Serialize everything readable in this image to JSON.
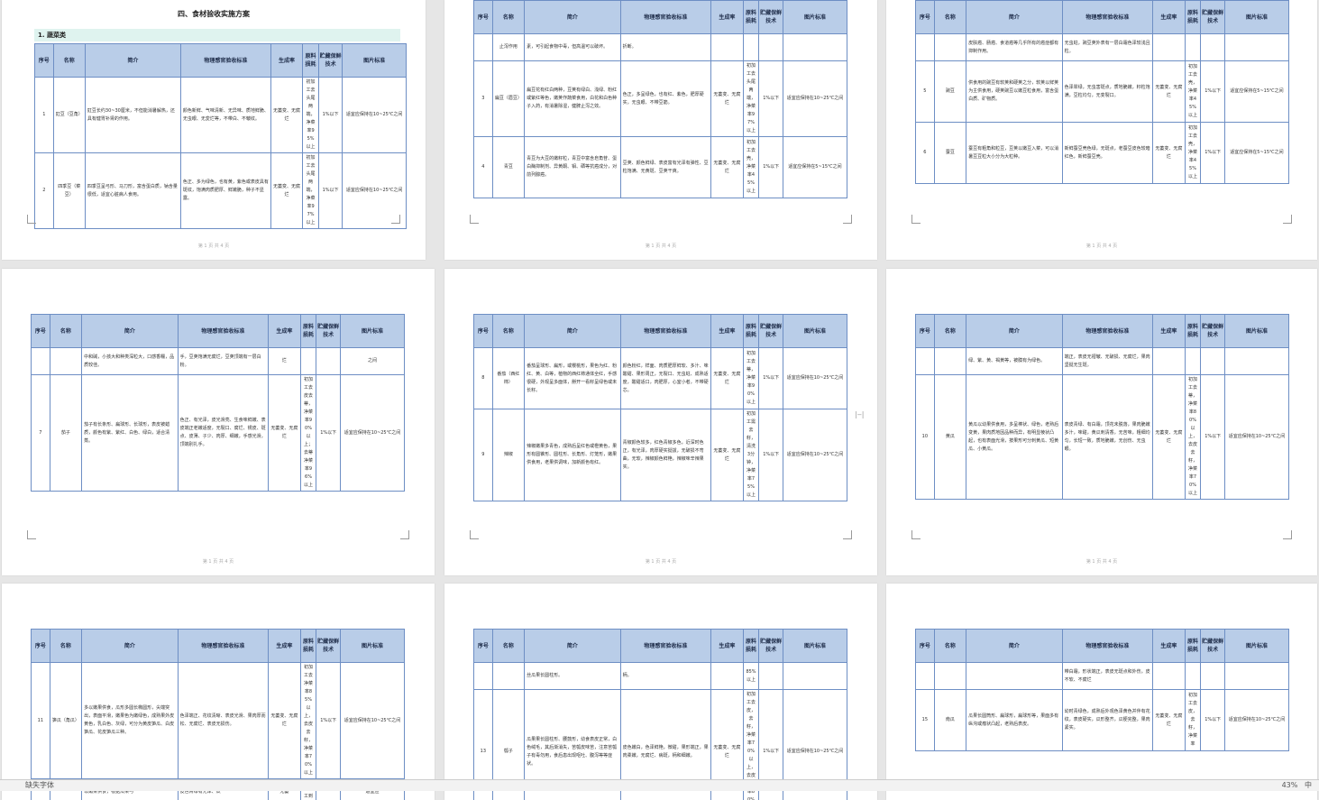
{
  "doc_title": "四、食材验收实施方案",
  "section_heading": "1. 蔬菜类",
  "headers": [
    "序号",
    "名称",
    "简介",
    "物理感官验收标准",
    "生成率",
    "原料损耗",
    "贮藏保鲜技术",
    "图片标准"
  ],
  "page_number_text": "第 1 页 共 4 页",
  "statusbar": {
    "font": "缺失字体",
    "zoom": "43%",
    "ime": "中"
  },
  "pages": [
    {
      "rows": [
        {
          "no": "1",
          "name": "豇豆（豆角）",
          "intro": "豇豆长约30~30厘米，不但能消暑解热，还具有健胃补肾的作用。",
          "std": "颜色新鲜、气味清新、无异味、质地鲜脆、无虫眼、无変烂等，不带白、不皱纹。",
          "rate": "无萎变、无腐烂",
          "yield": "初加工去头尾两端，净菜率95%以上",
          "loss": "1%以下",
          "store": "适宜应保持在10~25℃之间",
          "pic": "beans"
        },
        {
          "no": "2",
          "name": "四季豆（菜豆）",
          "intro": "四季豆呈弓形、马刀形，富含蛋白质，钠含量很低，适宜心脏病人食用。",
          "std": "色正、多为绿色，也有黄，紫色或表皮具有斑纹，饱满肉质肥厚、鲜嫩脆，种子不显露。",
          "rate": "无萎变、无腐烂",
          "yield": "初加工去头尾两端，净菜率97%以上",
          "loss": "1%以下",
          "store": "适宜应保持在10~25℃之间",
          "pic": "greenbeans"
        }
      ]
    },
    {
      "rows": [
        {
          "no": "",
          "name": "止泻作用",
          "intro": "素，可引起食物中毒，但高温可以破坏。",
          "std": "折断。",
          "rate": "",
          "yield": "",
          "loss": "",
          "store": "",
          "pic": ""
        },
        {
          "no": "3",
          "name": "扁豆（眉豆）",
          "intro": "扁豆花有红白两种，豆荚有绿白、浅绿、粉红或紫红等色，嫩荚作蔬菜食用，白花和白色种子入药，有消暑除湿，健脾止泻之效。",
          "std": "色正，多呈绿色，也有红、紫色，肥厚硬实，无虫眼、不带豆筋。",
          "rate": "无萎变、无腐烂",
          "yield": "初加工去头尾两端，净菜率97%以上",
          "loss": "1%以下",
          "store": "适宜应保持在10~25℃之间",
          "pic": "flatbean"
        },
        {
          "no": "4",
          "name": "青豆",
          "intro": "青豆为大豆的嫩籽粒，青豆中富含皂角苷、蛋白酶抑制剂、异黄酮、钼、硒等抗癌成分，对前列腺癌。",
          "std": "豆荚、颜色鲜绿、表皮富有光泽有弹性、豆粒饱满、无黄斑、豆荚干爽。",
          "rate": "无萎变、无腐烂",
          "yield": "初加工去壳，净菜率45%以上",
          "loss": "1%以下",
          "store": "适宜应保持在5~15℃之间",
          "pic": "peas"
        }
      ]
    },
    {
      "rows": [
        {
          "no": "",
          "name": "",
          "intro": "皮肤癌、肠癌、食道癌等几乎所有的癌症都有抑制作用。",
          "std": "无虫蛀，豌豆荚外表有一层白霜色泽较浅且粒。",
          "rate": "",
          "yield": "",
          "loss": "",
          "store": "",
          "pic": ""
        },
        {
          "no": "5",
          "name": "豌豆",
          "intro": "供食用的豌豆有软荚和硬荚之分，软荚以鲜荚为主供食用，硬荚豌豆以嫩豆粒食用，富含蛋白质、矿物质。",
          "std": "色泽翠绿，无虫害斑点，质地脆嫩，籽粒饱满，豆粒均匀，无变裂口。",
          "rate": "无萎变、无腐烂",
          "yield": "初加工去壳，净菜率45%以上",
          "loss": "1%以下",
          "store": "适宜应保持在5~15℃之间",
          "pic": "snowpea"
        },
        {
          "no": "6",
          "name": "蚕豆",
          "intro": "蚕豆有粗角和粒豆，豆荚以嫩豆入菜，可以消暑豆豆粒大小分为大粒种。",
          "std": "新鲜蚕豆壳色绿，无斑点，老蚕豆皮色较暗红色，新鲜蚕豆壳。",
          "rate": "无萎变、无腐烂",
          "yield": "初加工去壳，净菜率45%以上",
          "loss": "1%以下",
          "store": "适宜应保持在5~15℃之间",
          "pic": "broadbean"
        }
      ]
    },
    {
      "rows": [
        {
          "no": "",
          "name": "",
          "intro": "中和碱，小孩大和种类深粒大，口感香糯，品质较佳。",
          "std": "手，豆荚饱满无腐烂，豆荚顶端有一层白粉。",
          "rate": "烂",
          "yield": "",
          "loss": "",
          "store": "之间",
          "pic": ""
        },
        {
          "no": "7",
          "name": "茄子",
          "intro": "茄子有长条形、扁球形、长球形，表皮被蜡质，颜色有紫、紫红、白色、绿白，适合清蒸。",
          "std": "色正、有光泽，皮光滑亮、生食味鲜嫩、表皮端正老嫩适度，无裂口、腐烂、锈皮、斑点、皮薄、子少、肉厚、细嫩，手感光滑，顶端别扎手。",
          "rate": "无萎变、无腐烂",
          "yield": "初加工去皮去蒂，净菜率90%以上；去蒂净菜率96%以上",
          "loss": "1%以下",
          "store": "适宜应保持在10~25℃之间",
          "pic": "eggplant"
        }
      ]
    },
    {
      "rows": [
        {
          "no": "8",
          "name": "番茄（西红柿）",
          "intro": "番茄呈球形、扁形，或樱桃形，果色为红、粉红、黄、白等，植物的西红柿通体全红，手感很硬，外观呈多面体，掰开一看籽呈绿色或未长籽。",
          "std": "颜色粉红，样面、肉质肥厚鲜软、多汁、味酸甜、果形周正，无裂口、无虫蛀、成熟适度，酸甜适口，肉肥厚，心室小者，不带硬芯。",
          "rate": "无萎变、无腐烂",
          "yield": "初加工去蒂，净菜率90%以上",
          "loss": "1%以下",
          "store": "适宜应保持在10~25℃之间",
          "pic": "tomato"
        },
        {
          "no": "9",
          "name": "辣椒",
          "intro": "辣椒嫩果多青色，成熟后呈红色或橙黄色，果形有圆锥形、圆柱形、长角形、灯笼形，嫩果供食用，老果供调味，加新颜色有红。",
          "std": "青椒颜色较多，红色青椒多色，近深时色正，有光泽，肉厚硬实挺拔，无破损不弯曲，无软，辣椒颜色鲜艳，辣椒味辛辣果实。",
          "rate": "无萎变、无腐烂",
          "yield": "初加工需去籽，清洗3分钟，净菜率75%以上",
          "loss": "1%以下",
          "store": "适宜应保持在10~25℃之间",
          "pic": "peppers"
        }
      ]
    },
    {
      "rows": [
        {
          "no": "",
          "name": "",
          "intro": "绿、紫、黄、褐黄等，被膜有为绿色。",
          "std": "端正，表皮无褶皱、无破损、无腐烂，果肉坚挺无生斑。",
          "rate": "",
          "yield": "",
          "loss": "",
          "store": "",
          "pic": ""
        },
        {
          "no": "10",
          "name": "黄瓜",
          "intro": "黄瓜以幼果供食用，多呈棒状、绿色，老熟后变黄，果肉质地因品种而异，有明显棱状凸起，也有表面光滑，按果形可分刺黄瓜、短黄瓜、小黄瓜。",
          "std": "表皮青绿、有白霜，顶花未脱落，果肉脆嫩多汁，味甜，黄瓜刺清香，无苦味，粗细均匀，长短一致，质地脆嫩，无创伤、无虫眼。",
          "rate": "无萎变、无腐烂",
          "yield": "初加工去蒂，净菜率80%以上，去皮去籽，净菜率70%以上",
          "loss": "1%以下",
          "store": "适宜应保持在10~25℃之间",
          "pic": "cucumber"
        }
      ]
    },
    {
      "rows": [
        {
          "no": "11",
          "name": "笋瓜（角瓜）",
          "intro": "多以嫩果供食，瓜形多圆长椭圆形，尖端突出，表面平滑，嫩果色为嫩绿色，成熟果外皮黄色，乳白色、灰绿，可分为黄皮笋瓜、白皮笋瓜、花皮笋瓜三种。",
          "std": "色泽端正、花纹清晰、表皮光滑、果肉厚而松、无腐烂、表皮无损伤。",
          "rate": "无萎变、无腐烂",
          "yield": "初加工去净菜率85%以上，去皮去籽，净菜率70%以上",
          "loss": "1%以下",
          "store": "适宜应保持在10~25℃之间",
          "pic": "zucchini"
        },
        {
          "no": "",
          "name": "",
          "intro": "以嫩果供食，根据瓜果与",
          "std": "皮色青绿有光泽、瓜",
          "rate": "无萎",
          "yield": "初加工到",
          "loss": "",
          "store": "适宜应",
          "pic": ""
        }
      ]
    },
    {
      "rows": [
        {
          "no": "",
          "name": "",
          "intro": "丝瓜果长圆柱形。",
          "std": "柄。",
          "rate": "",
          "yield": "85%以上",
          "loss": "",
          "store": "",
          "pic": ""
        },
        {
          "no": "13",
          "name": "瓠子",
          "intro": "瓜果果长圆柱形、腰鼓形，幼食表皮正常，白色绒毛，其后渐消失，苦瓠皮味苦，注意苦瓠子有毒勿用，食后患出现呕吐、腹泻等等症状。",
          "std": "皮色嫩白，色泽鲜艳，微甜，果形端正，果肉柔嫩，无腐烂、病斑，柄和细嫩。",
          "rate": "无萎变、无腐烂",
          "yield": "初加工去皮，去籽，净菜率70%以上，去皮净菜率80%以上",
          "loss": "1%以下",
          "store": "适宜应保持在10~25℃之间",
          "pic": "gourd"
        }
      ]
    },
    {
      "rows": [
        {
          "no": "",
          "name": "",
          "intro": "",
          "std": "带白霜，形状端正，表皮无斑点和外伤，皮不软、不腐烂",
          "rate": "",
          "yield": "",
          "loss": "",
          "store": "",
          "pic": ""
        },
        {
          "no": "15",
          "name": "南瓜",
          "intro": "瓜果长圆筒形、扁球形，扁球形等，果面多有纵沟或瘤状凸起，老熟后表皮。",
          "std": "幼时青绿色，成熟后外观色泽黄色并伴有花纹，表皮硬实，瓜形整齐，瓜梗完整，果肉紧实。",
          "rate": "无萎变、无腐烂",
          "yield": "初加工去皮，去籽，净菜率",
          "loss": "1%以下",
          "store": "适宜应保持在10~25℃之间",
          "pic": "pumpkin"
        }
      ]
    }
  ]
}
